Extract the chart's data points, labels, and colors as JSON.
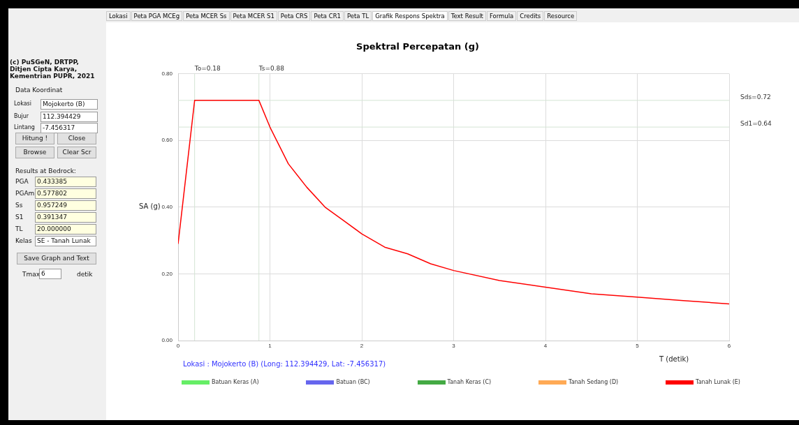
{
  "chart_data": {
    "type": "line",
    "title": "Spektral Percepatan (g)",
    "xlabel": "T (detik)",
    "ylabel": "SA (g)",
    "xlim": [
      0,
      6
    ],
    "xticks": [
      0,
      1,
      2,
      3,
      4,
      5,
      6
    ],
    "ylim": [
      0,
      0.8
    ],
    "yticks": [
      {
        "value": 0,
        "label": "0.00"
      },
      {
        "value": 0.2,
        "label": "0.20"
      },
      {
        "value": 0.4,
        "label": "0.40"
      },
      {
        "value": 0.6,
        "label": "0.60"
      },
      {
        "value": 0.8,
        "label": "0.80"
      }
    ],
    "grid": true,
    "legend": "bottom",
    "marker": "none",
    "line_style": "solid",
    "series": [
      {
        "name": "Batuan Keras (A)",
        "color": "#66ee66"
      },
      {
        "name": "Batuan (BC)",
        "color": "#6666ee"
      },
      {
        "name": "Tanah Keras (C)",
        "color": "#44aa44"
      },
      {
        "name": "Tanah Sedang (D)",
        "color": "#ffaa55"
      },
      {
        "name": "Tanah Lunak (E)",
        "color": "#ff0000",
        "x": [
          0,
          0.18,
          0.88,
          1,
          1.2,
          1.4,
          1.6,
          1.8,
          2,
          2.25,
          2.5,
          2.75,
          3,
          3.5,
          4,
          4.5,
          5,
          5.5,
          6
        ],
        "values": [
          0.29,
          0.72,
          0.72,
          0.64,
          0.53,
          0.46,
          0.4,
          0.36,
          0.32,
          0.28,
          0.26,
          0.23,
          0.21,
          0.18,
          0.16,
          0.14,
          0.13,
          0.12,
          0.11
        ]
      }
    ],
    "ref_lines": [
      {
        "axis": "x",
        "value": 0.18,
        "label": "To=0.18",
        "color": "#d4e4d4"
      },
      {
        "axis": "x",
        "value": 0.88,
        "label": "Ts=0.88",
        "color": "#d4e4d4"
      },
      {
        "axis": "y",
        "value": 0.72,
        "label": "Sds=0.72",
        "color": "#d4e4d4"
      },
      {
        "axis": "y",
        "value": 0.64,
        "label": "Sd1=0.64",
        "color": "#d4e4d4"
      }
    ],
    "annotations": [
      "Lokasi : Mojokerto (B) (Long: 112.394429, Lat:  -7.456317)",
      "(c) PuSGeN, DRTPP, Ditjen Cipta Karya, Kementrian PUPR, 2021",
      "Lokasi",
      "Peta PGA MCEg",
      "Peta MCER Ss",
      "Peta MCER S1",
      "Peta CRS",
      "Peta CR1",
      "Peta TL",
      "Grafik Respons Spektra",
      "Text Result",
      "Formula",
      "Credits",
      "Resource",
      "Data Koordinat",
      "Lokasi",
      "Mojokerto (B)",
      "Bujur",
      "112.394429",
      "Lintang",
      "-7.456317",
      "Hitung !",
      "Close",
      "Browse",
      "Clear Scr",
      "Results at Bedrock:",
      "PGA",
      "0.433385",
      "PGAm",
      "0.577802",
      "Ss",
      "0.957249",
      "S1",
      "0.391347",
      "TL",
      "20.000000",
      "Kelas",
      "SE - Tanah Lunak",
      "Save Graph and Text",
      "Tmax",
      "6",
      "detik"
    ]
  }
}
